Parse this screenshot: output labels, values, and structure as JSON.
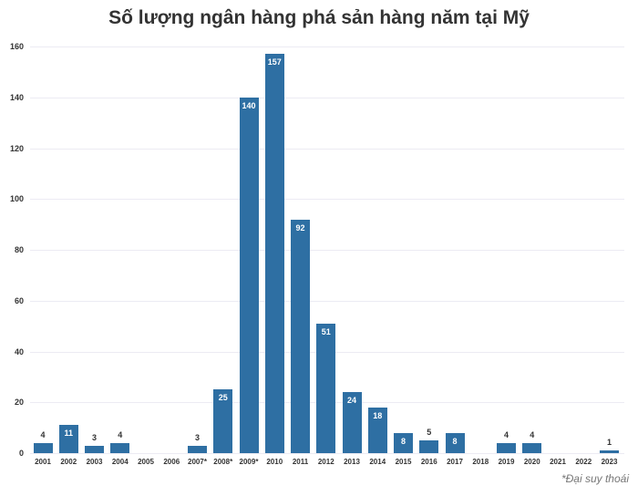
{
  "chart_data": {
    "type": "bar",
    "title": "Số lượng ngân hàng phá sản hàng năm tại Mỹ",
    "xlabel": "",
    "ylabel": "",
    "ylim": [
      0,
      160
    ],
    "yticks": [
      0,
      20,
      40,
      60,
      80,
      100,
      120,
      140,
      160
    ],
    "grid": true,
    "categories": [
      "2001",
      "2002",
      "2003",
      "2004",
      "2005",
      "2006",
      "2007*",
      "2008*",
      "2009*",
      "2010",
      "2011",
      "2012",
      "2013",
      "2014",
      "2015",
      "2016",
      "2017",
      "2018",
      "2019",
      "2020",
      "2021",
      "2022",
      "2023"
    ],
    "values": [
      4,
      11,
      3,
      4,
      0,
      0,
      3,
      25,
      140,
      157,
      92,
      51,
      24,
      18,
      8,
      5,
      8,
      0,
      4,
      4,
      0,
      0,
      1
    ],
    "color": "#2e6fa3",
    "annotation": "*Đại suy thoái"
  }
}
